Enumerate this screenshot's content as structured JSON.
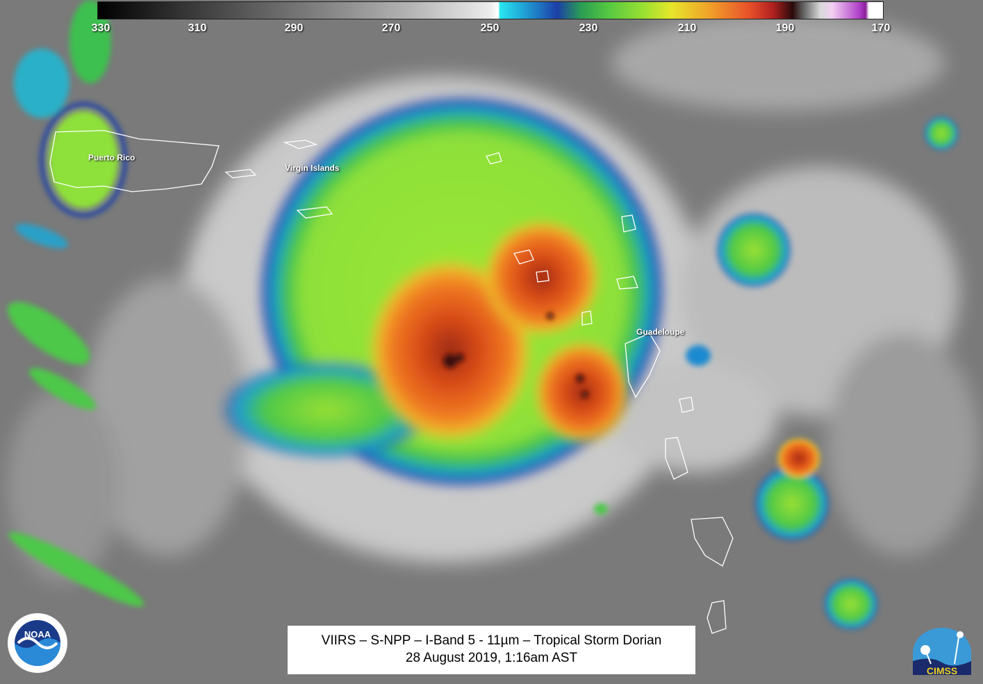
{
  "colorbar": {
    "ticks": [
      "330",
      "310",
      "290",
      "270",
      "250",
      "230",
      "210",
      "190",
      "170"
    ]
  },
  "labels": {
    "puerto_rico": "Puerto Rico",
    "virgin_islands": "Virgin Islands",
    "guadeloupe": "Guadeloupe"
  },
  "caption": {
    "line1": "VIIRS – S-NPP – I-Band 5 - 11µm – Tropical Storm Dorian",
    "line2": "28 August 2019, 1:16am AST"
  },
  "logos": {
    "noaa_text": "NOAA",
    "cimss_text": "CIMSS"
  }
}
